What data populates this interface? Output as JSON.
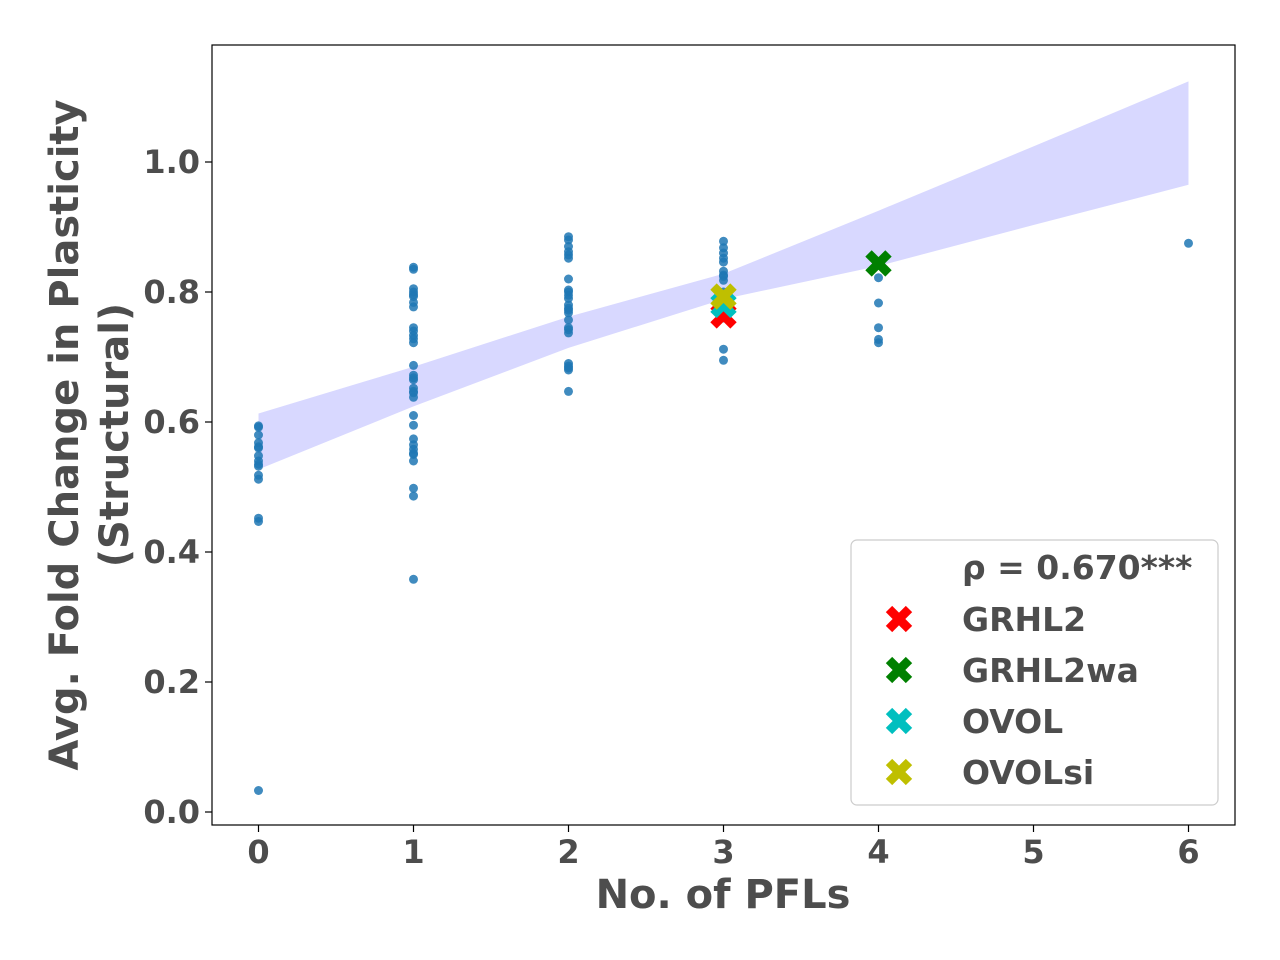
{
  "chart_data": {
    "type": "scatter",
    "xlabel": "No. of PFLs",
    "ylabel_lines": [
      "Avg. Fold Change in Plasticity",
      "(Structural)"
    ],
    "xlim": [
      -0.3,
      6.3
    ],
    "ylim": [
      -0.02,
      1.18
    ],
    "xticks": [
      "0",
      "1",
      "2",
      "3",
      "4",
      "5",
      "6"
    ],
    "yticks": [
      "0.0",
      "0.2",
      "0.4",
      "0.6",
      "0.8",
      "1.0"
    ],
    "point_color": "#1f77b4",
    "band_color": "#d8d8ff",
    "points": {
      "x": [
        0,
        0,
        0,
        0,
        0,
        0,
        0,
        0,
        0,
        0,
        0,
        0,
        0,
        0,
        0,
        1,
        1,
        1,
        1,
        1,
        1,
        1,
        1,
        1,
        1,
        1,
        1,
        1,
        1,
        1,
        1,
        1,
        1,
        1,
        1,
        1,
        1,
        1,
        1,
        1,
        1,
        1,
        1,
        1,
        1,
        1,
        1,
        2,
        2,
        2,
        2,
        2,
        2,
        2,
        2,
        2,
        2,
        2,
        2,
        2,
        2,
        2,
        2,
        2,
        2,
        2,
        2,
        2,
        2,
        2,
        2,
        3,
        3,
        3,
        3,
        3,
        3,
        3,
        3,
        3,
        3,
        3,
        3,
        3,
        3,
        3,
        3,
        3,
        3,
        4,
        4,
        4,
        4,
        4,
        4,
        6
      ],
      "y": [
        0.594,
        0.592,
        0.58,
        0.568,
        0.562,
        0.548,
        0.54,
        0.535,
        0.532,
        0.518,
        0.512,
        0.452,
        0.447,
        0.033,
        0.56,
        0.838,
        0.835,
        0.805,
        0.8,
        0.796,
        0.784,
        0.777,
        0.745,
        0.74,
        0.733,
        0.728,
        0.722,
        0.687,
        0.672,
        0.665,
        0.652,
        0.645,
        0.638,
        0.61,
        0.595,
        0.574,
        0.565,
        0.558,
        0.55,
        0.54,
        0.498,
        0.486,
        0.358,
        0.668,
        0.647,
        0.793,
        0.552,
        0.885,
        0.88,
        0.87,
        0.857,
        0.852,
        0.82,
        0.8,
        0.795,
        0.79,
        0.78,
        0.775,
        0.768,
        0.757,
        0.745,
        0.742,
        0.737,
        0.69,
        0.686,
        0.68,
        0.647,
        0.862,
        0.803,
        0.772,
        0.683,
        0.878,
        0.868,
        0.86,
        0.852,
        0.846,
        0.832,
        0.826,
        0.818,
        0.8,
        0.795,
        0.79,
        0.785,
        0.78,
        0.77,
        0.76,
        0.712,
        0.695,
        0.824,
        0.843,
        0.822,
        0.783,
        0.745,
        0.727,
        0.722,
        0.875
      ]
    },
    "band": {
      "x": [
        0,
        1,
        2,
        3,
        4,
        5,
        6
      ],
      "lower": [
        0.527,
        0.624,
        0.714,
        0.789,
        0.84,
        0.903,
        0.965
      ],
      "upper": [
        0.613,
        0.685,
        0.762,
        0.828,
        0.925,
        1.024,
        1.124
      ]
    },
    "highlights": [
      {
        "name": "GRHL2",
        "x": 3,
        "y": 0.764,
        "color": "#ff0000"
      },
      {
        "name": "GRHL2wa",
        "x": 4,
        "y": 0.844,
        "color": "#008000"
      },
      {
        "name": "OVOL",
        "x": 3,
        "y": 0.78,
        "color": "#00bfbf"
      },
      {
        "name": "OVOLsi",
        "x": 3,
        "y": 0.793,
        "color": "#bfbf00"
      }
    ],
    "legend": {
      "title": "ρ = 0.670***",
      "placement": "lower-right"
    }
  }
}
